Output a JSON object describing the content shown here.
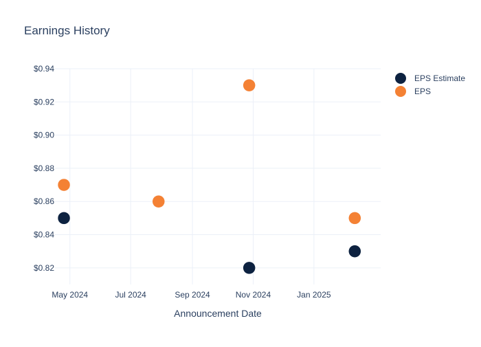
{
  "chart_data": {
    "type": "scatter",
    "title": "Earnings History",
    "xlabel": "Announcement Date",
    "ylabel": "",
    "x_ticks": [
      "2024-05-01",
      "2024-07-01",
      "2024-09-01",
      "2024-11-01",
      "2025-01-01"
    ],
    "x_tick_labels": [
      "May 2024",
      "Jul 2024",
      "Sep 2024",
      "Nov 2024",
      "Jan 2025"
    ],
    "xlim": [
      "2024-04-16",
      "2025-03-09"
    ],
    "y_ticks": [
      0.82,
      0.84,
      0.86,
      0.88,
      0.9,
      0.92,
      0.94
    ],
    "y_tick_labels": [
      "$0.82",
      "$0.84",
      "$0.86",
      "$0.88",
      "$0.90",
      "$0.92",
      "$0.94"
    ],
    "ylim": [
      0.81,
      0.94
    ],
    "grid": true,
    "legend": "top-right",
    "series": [
      {
        "name": "EPS Estimate",
        "color": "#0d2240",
        "points": [
          {
            "x": "2024-04-25",
            "y": 0.85
          },
          {
            "x": "2024-07-29",
            "y": 0.86
          },
          {
            "x": "2024-10-28",
            "y": 0.82
          },
          {
            "x": "2025-02-11",
            "y": 0.83
          }
        ]
      },
      {
        "name": "EPS",
        "color": "#f48134",
        "points": [
          {
            "x": "2024-04-25",
            "y": 0.87
          },
          {
            "x": "2024-07-29",
            "y": 0.86
          },
          {
            "x": "2024-10-28",
            "y": 0.93
          },
          {
            "x": "2025-02-11",
            "y": 0.85
          }
        ]
      }
    ]
  }
}
